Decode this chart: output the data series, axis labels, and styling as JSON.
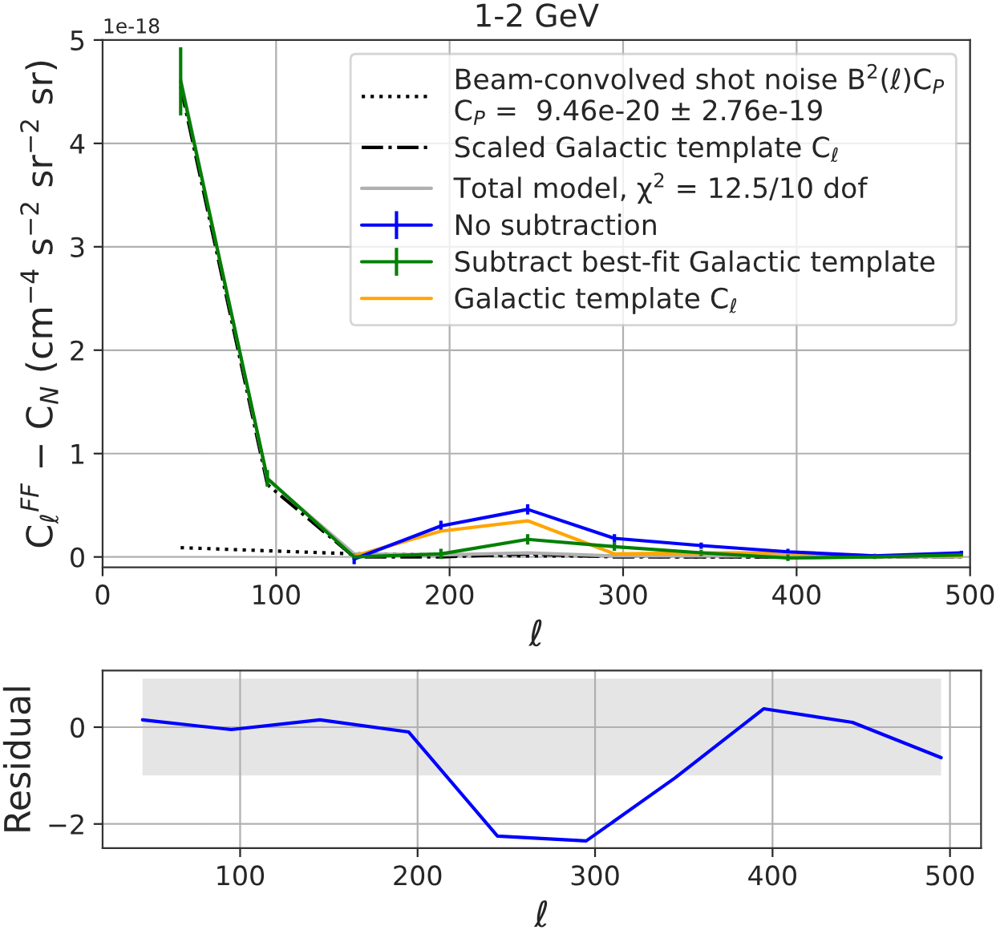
{
  "chart_data": [
    {
      "type": "line",
      "title": "1-2 GeV",
      "xlabel": "ℓ",
      "ylabel": "C$_{ℓ}$$^{FF}$ − C$_{N}$ (cm$^{−4}$ s$^{−2}$ sr$^{−2}$ sr)",
      "x": [
        45,
        95,
        145,
        195,
        245,
        295,
        345,
        395,
        445,
        495
      ],
      "series": [
        {
          "name": "Beam-convolved shot noise B$^{2}$(ℓ)C$_{P}$\nC$_{P}$ =  9.46e-20 ± 2.76e-19",
          "color": "#000000",
          "line_style": "dotted",
          "values": [
            0.09,
            0.06,
            0.03,
            0.02,
            0.01,
            0.01,
            0.0,
            0.0,
            0.0,
            0.0
          ]
        },
        {
          "name": "Scaled Galactic template C$_{ℓ}$",
          "color": "#000000",
          "line_style": "dashdot",
          "values": [
            4.55,
            0.7,
            0.0,
            0.0,
            0.03,
            0.0,
            0.0,
            0.0,
            0.0,
            0.0
          ]
        },
        {
          "name": "Total model, χ$^{2}$ = 12.5/10 dof",
          "color": "#b0b0b0",
          "line_style": "solid",
          "values": [
            4.62,
            0.75,
            0.03,
            0.02,
            0.04,
            0.01,
            0.01,
            0.01,
            0.0,
            0.0
          ]
        },
        {
          "name": "No subtraction",
          "color": "#0000ff",
          "line_style": "solid",
          "values": [
            null,
            null,
            -0.02,
            0.3,
            0.46,
            0.18,
            0.11,
            0.05,
            0.01,
            0.04
          ],
          "errors": [
            null,
            null,
            0.05,
            0.05,
            0.05,
            0.04,
            0.03,
            0.03,
            0.02,
            0.02
          ]
        },
        {
          "name": "Subtract best-fit Galactic template",
          "color": "#008000",
          "line_style": "solid",
          "values": [
            4.6,
            0.76,
            0.0,
            0.03,
            0.17,
            0.1,
            0.04,
            -0.01,
            0.0,
            0.02
          ],
          "errors": [
            0.33,
            0.08,
            0.02,
            0.05,
            0.05,
            0.04,
            0.03,
            0.03,
            0.02,
            0.02
          ]
        },
        {
          "name": "Galactic template C$_{ℓ}$",
          "color": "#ffa500",
          "line_style": "solid",
          "values": [
            null,
            null,
            0.01,
            0.25,
            0.35,
            0.03,
            0.04,
            0.04,
            0.01,
            0.01
          ]
        }
      ],
      "xlim": [
        0,
        500
      ],
      "xticks": [
        0,
        100,
        200,
        300,
        400,
        500
      ],
      "ylim": [
        -0.1,
        5
      ],
      "yticks": [
        0,
        1,
        2,
        3,
        4,
        5
      ],
      "annotations": [
        "1e-18"
      ],
      "grid": true,
      "legend": "top right"
    },
    {
      "type": "line",
      "xlabel": "ℓ",
      "ylabel": "Residual",
      "x": [
        45,
        95,
        145,
        195,
        245,
        295,
        345,
        395,
        445,
        495
      ],
      "series": [
        {
          "color": "#0000ff",
          "values": [
            0.15,
            -0.05,
            0.15,
            -0.1,
            -2.25,
            -2.35,
            -1.05,
            0.38,
            0.1,
            -0.63
          ]
        }
      ],
      "bands": [
        {
          "axis": "y",
          "from": -1,
          "to": 1,
          "color": "#e5e5e5"
        }
      ],
      "xlim": [
        22.5,
        517.5
      ],
      "xticks": [
        100,
        200,
        300,
        400,
        500
      ],
      "ylim": [
        -2.5,
        1.17
      ],
      "yticks": [
        -2,
        0
      ],
      "grid": true
    }
  ]
}
